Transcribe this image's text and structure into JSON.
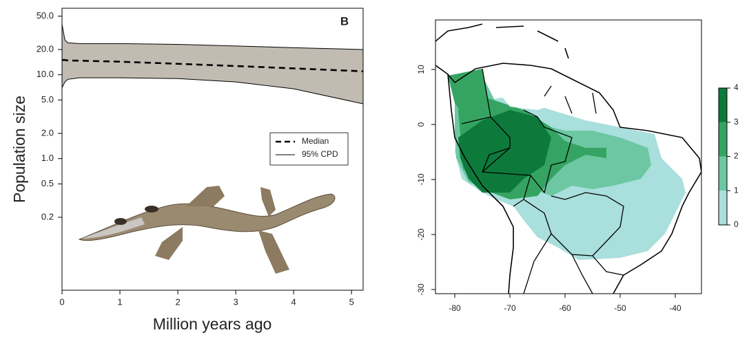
{
  "chart_data": [
    {
      "type": "band-line",
      "panel_label": "B",
      "x_label": "Million years ago",
      "y_label": "Population size",
      "y_scale": "log",
      "xlim": [
        0,
        5.2
      ],
      "xticks": [
        0,
        1,
        2,
        3,
        4,
        5
      ],
      "ylim": [
        0.027,
        62
      ],
      "yticks": [
        {
          "value": 50,
          "label": "50.0"
        },
        {
          "value": 20,
          "label": "20.0"
        },
        {
          "value": 10,
          "label": "10.0"
        },
        {
          "value": 5,
          "label": "5.0"
        },
        {
          "value": 2,
          "label": "2.0"
        },
        {
          "value": 1,
          "label": "1.0"
        },
        0.5,
        0.2
      ],
      "x": [
        0,
        0.05,
        0.1,
        0.3,
        1,
        2,
        3,
        4,
        5.2
      ],
      "series": [
        {
          "name": "Median",
          "color": "#000000",
          "dashed": true,
          "values": [
            15,
            15,
            14.8,
            14.7,
            14.3,
            13.5,
            12.7,
            11.9,
            11.0
          ]
        },
        {
          "name": "95% CPD",
          "color": "#000000",
          "fill": "#c2bbb2",
          "upper": [
            40,
            26,
            24,
            23.5,
            23.5,
            23,
            22,
            21,
            20
          ],
          "lower": [
            7,
            8.2,
            8.8,
            9.2,
            9.2,
            9.0,
            8.2,
            6.8,
            4.5
          ]
        }
      ],
      "legend": "center-right"
    },
    {
      "type": "map",
      "xlim": [
        -83.5,
        -35.25
      ],
      "xticks": [
        -80,
        -70,
        -60,
        -50,
        -40
      ],
      "ylim": [
        -30.75,
        19
      ],
      "yticks": [
        10,
        0,
        -10,
        -20,
        -30
      ],
      "colorbar": {
        "lim": [
          0,
          4
        ],
        "ticks": [
          0,
          1,
          2,
          3,
          4
        ],
        "colors": [
          "#a9dfdc",
          "#6cc7a2",
          "#35a462",
          "#0d7a3c"
        ]
      }
    }
  ]
}
